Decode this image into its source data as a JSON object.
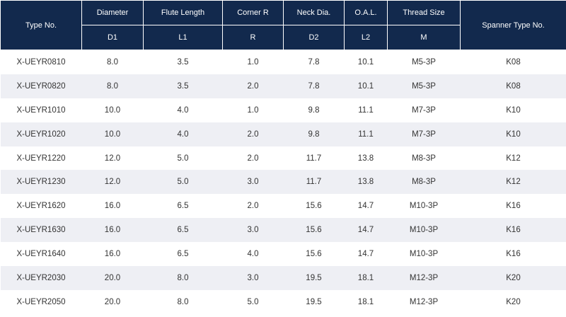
{
  "columns": {
    "type_no": "Type No.",
    "diameter": {
      "label": "Diameter",
      "symbol": "D1"
    },
    "flute_length": {
      "label": "Flute Length",
      "symbol": "L1"
    },
    "corner_r": {
      "label": "Corner R",
      "symbol": "R"
    },
    "neck_dia": {
      "label": "Neck Dia.",
      "symbol": "D2"
    },
    "oal": {
      "label": "O.A.L.",
      "symbol": "L2"
    },
    "thread_size": {
      "label": "Thread Size",
      "symbol": "M"
    },
    "spanner": "Spanner Type No."
  },
  "rows": [
    [
      "X-UEYR0810",
      "8.0",
      "3.5",
      "1.0",
      "7.8",
      "10.1",
      "M5-3P",
      "K08"
    ],
    [
      "X-UEYR0820",
      "8.0",
      "3.5",
      "2.0",
      "7.8",
      "10.1",
      "M5-3P",
      "K08"
    ],
    [
      "X-UEYR1010",
      "10.0",
      "4.0",
      "1.0",
      "9.8",
      "11.1",
      "M7-3P",
      "K10"
    ],
    [
      "X-UEYR1020",
      "10.0",
      "4.0",
      "2.0",
      "9.8",
      "11.1",
      "M7-3P",
      "K10"
    ],
    [
      "X-UEYR1220",
      "12.0",
      "5.0",
      "2.0",
      "11.7",
      "13.8",
      "M8-3P",
      "K12"
    ],
    [
      "X-UEYR1230",
      "12.0",
      "5.0",
      "3.0",
      "11.7",
      "13.8",
      "M8-3P",
      "K12"
    ],
    [
      "X-UEYR1620",
      "16.0",
      "6.5",
      "2.0",
      "15.6",
      "14.7",
      "M10-3P",
      "K16"
    ],
    [
      "X-UEYR1630",
      "16.0",
      "6.5",
      "3.0",
      "15.6",
      "14.7",
      "M10-3P",
      "K16"
    ],
    [
      "X-UEYR1640",
      "16.0",
      "6.5",
      "4.0",
      "15.6",
      "14.7",
      "M10-3P",
      "K16"
    ],
    [
      "X-UEYR2030",
      "20.0",
      "8.0",
      "3.0",
      "19.5",
      "18.1",
      "M12-3P",
      "K20"
    ],
    [
      "X-UEYR2050",
      "20.0",
      "8.0",
      "5.0",
      "19.5",
      "18.1",
      "M12-3P",
      "K20"
    ]
  ],
  "colors": {
    "header_bg": "#12294d",
    "header_text": "#ffffff",
    "stripe": "#eeeff4",
    "body_text": "#333333"
  }
}
